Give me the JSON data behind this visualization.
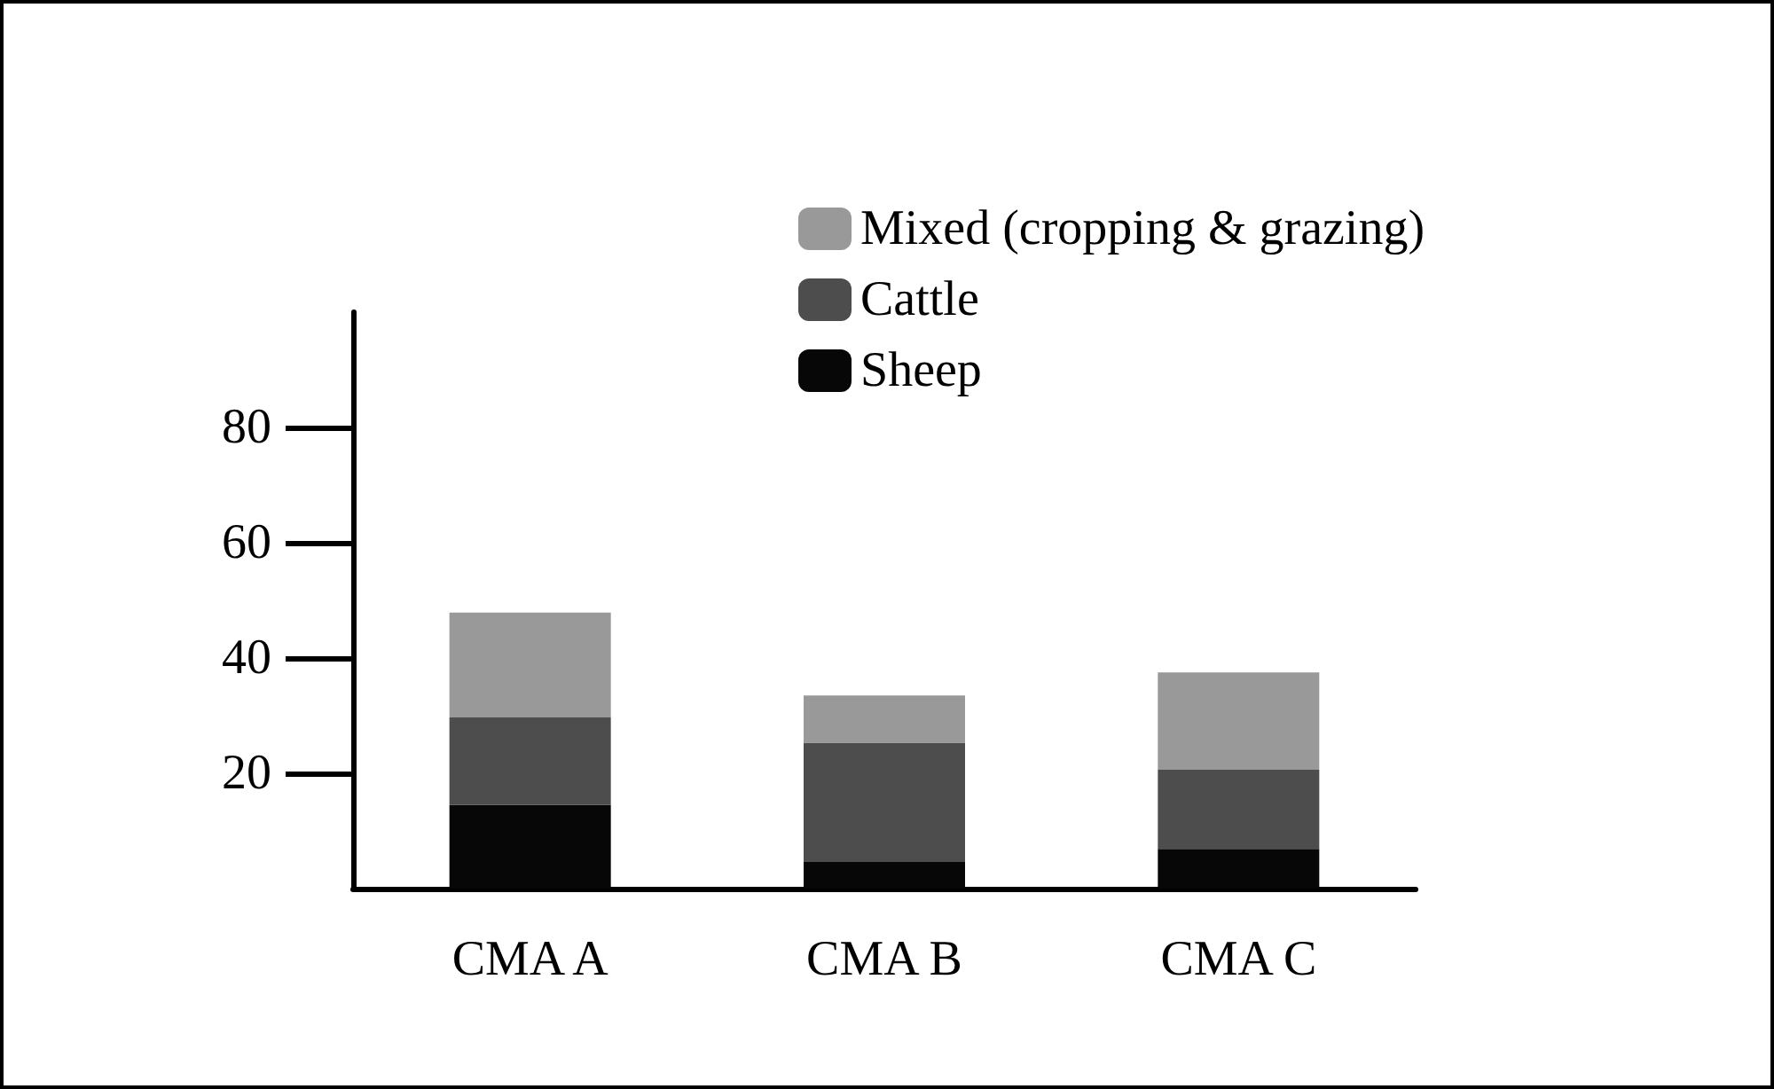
{
  "chart_data": {
    "type": "bar",
    "stacked": true,
    "categories": [
      "CMA A",
      "CMA B",
      "CMA C"
    ],
    "series": [
      {
        "name": "Sheep",
        "color": "#070707",
        "values": [
          14.5,
          4.6,
          6.9
        ]
      },
      {
        "name": "Cattle",
        "color": "#4d4d4d",
        "values": [
          15.2,
          20.7,
          13.7
        ]
      },
      {
        "name": "Mixed (cropping & grazing)",
        "color": "#999999",
        "values": [
          18.2,
          8.2,
          16.9
        ]
      }
    ],
    "ylim": [
      0,
      100
    ],
    "yticks": [
      20,
      40,
      60,
      80
    ],
    "grid": false,
    "legend": "top right"
  }
}
